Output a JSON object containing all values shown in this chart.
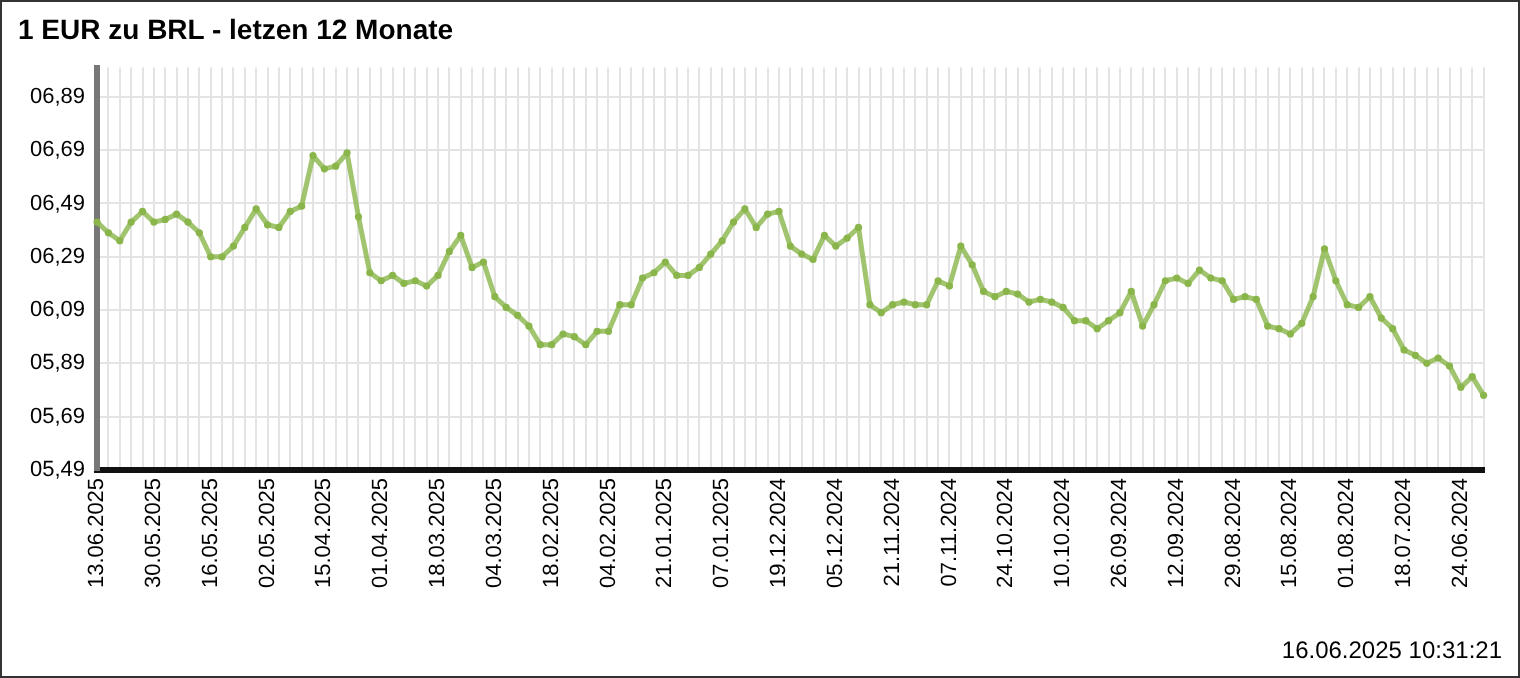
{
  "chart_data": {
    "type": "line",
    "title": "1 EUR zu BRL - letzen 12 Monate",
    "categories": [
      "13.06.2025",
      null,
      null,
      null,
      null,
      "30.05.2025",
      null,
      null,
      null,
      null,
      "16.05.2025",
      null,
      null,
      null,
      null,
      "02.05.2025",
      null,
      null,
      null,
      null,
      "15.04.2025",
      null,
      null,
      null,
      null,
      "01.04.2025",
      null,
      null,
      null,
      null,
      "18.03.2025",
      null,
      null,
      null,
      null,
      "04.03.2025",
      null,
      null,
      null,
      null,
      "18.02.2025",
      null,
      null,
      null,
      null,
      "04.02.2025",
      null,
      null,
      null,
      null,
      "21.01.2025",
      null,
      null,
      null,
      null,
      "07.01.2025",
      null,
      null,
      null,
      null,
      "19.12.2024",
      null,
      null,
      null,
      null,
      "05.12.2024",
      null,
      null,
      null,
      null,
      "21.11.2024",
      null,
      null,
      null,
      null,
      "07.11.2024",
      null,
      null,
      null,
      null,
      "24.10.2024",
      null,
      null,
      null,
      null,
      "10.10.2024",
      null,
      null,
      null,
      null,
      "26.09.2024",
      null,
      null,
      null,
      null,
      "12.09.2024",
      null,
      null,
      null,
      null,
      "29.08.2024",
      null,
      null,
      null,
      null,
      "15.08.2024",
      null,
      null,
      null,
      null,
      "01.08.2024",
      null,
      null,
      null,
      null,
      "18.07.2024",
      null,
      null,
      null,
      null,
      "24.06.2024",
      null,
      null
    ],
    "series": [
      {
        "color": "#8ab54b",
        "values": [
          6.42,
          6.38,
          6.35,
          6.42,
          6.46,
          6.42,
          6.43,
          6.45,
          6.42,
          6.38,
          6.29,
          6.29,
          6.33,
          6.4,
          6.47,
          6.41,
          6.4,
          6.46,
          6.48,
          6.67,
          6.62,
          6.63,
          6.68,
          6.44,
          6.23,
          6.2,
          6.22,
          6.19,
          6.2,
          6.18,
          6.22,
          6.31,
          6.37,
          6.25,
          6.27,
          6.14,
          6.1,
          6.07,
          6.03,
          5.96,
          5.96,
          6.0,
          5.99,
          5.96,
          6.01,
          6.01,
          6.11,
          6.11,
          6.21,
          6.23,
          6.27,
          6.22,
          6.22,
          6.25,
          6.3,
          6.35,
          6.42,
          6.47,
          6.4,
          6.45,
          6.46,
          6.33,
          6.3,
          6.28,
          6.37,
          6.33,
          6.36,
          6.4,
          6.11,
          6.08,
          6.11,
          6.12,
          6.11,
          6.11,
          6.2,
          6.18,
          6.33,
          6.26,
          6.16,
          6.14,
          6.16,
          6.15,
          6.12,
          6.13,
          6.12,
          6.1,
          6.05,
          6.05,
          6.02,
          6.05,
          6.08,
          6.16,
          6.03,
          6.11,
          6.2,
          6.21,
          6.19,
          6.24,
          6.21,
          6.2,
          6.13,
          6.14,
          6.13,
          6.03,
          6.02,
          6.0,
          6.04,
          6.14,
          6.32,
          6.2,
          6.11,
          6.1,
          6.14,
          6.06,
          6.02,
          5.94,
          5.92,
          5.89,
          5.91,
          5.88,
          5.8,
          5.84,
          5.77
        ]
      }
    ],
    "ylim": [
      5.49,
      7.0
    ],
    "yticks": [
      {
        "value": 5.49,
        "label": "05,49"
      },
      {
        "value": 5.69,
        "label": "05,69"
      },
      {
        "value": 5.89,
        "label": "05,89"
      },
      {
        "value": 6.09,
        "label": "06,09"
      },
      {
        "value": 6.29,
        "label": "06,29"
      },
      {
        "value": 6.49,
        "label": "06,49"
      },
      {
        "value": 6.69,
        "label": "06,69"
      },
      {
        "value": 6.89,
        "label": "06,89"
      }
    ],
    "grid": true,
    "legend": false,
    "marker": "circle",
    "line_style": "solid",
    "annotations": [
      "16.06.2025 10:31:21"
    ]
  }
}
